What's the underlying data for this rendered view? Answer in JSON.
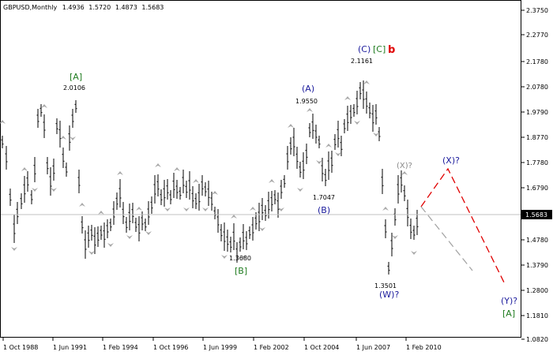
{
  "header": {
    "symbol": "GBPUSD,Monthly",
    "open": "1.4936",
    "high": "1.5720",
    "low": "1.4873",
    "close": "1.5683"
  },
  "price_axis": {
    "ticks": [
      "2.3750",
      "2.2770",
      "2.1780",
      "2.0780",
      "1.9790",
      "1.8770",
      "1.7780",
      "1.6790",
      "1.5683",
      "1.4780",
      "1.3790",
      "1.2800",
      "1.1810",
      "1.0820"
    ],
    "current_price": "1.5683"
  },
  "time_axis": {
    "ticks": [
      "1 Oct 1988",
      "1 Jun 1991",
      "1 Feb 1994",
      "1 Oct 1996",
      "1 Jun 1999",
      "1 Feb 2002",
      "1 Oct 2004",
      "1 Jun 2007",
      "1 Feb 2010"
    ]
  },
  "annotations": [
    {
      "id": "a-label",
      "text": "[A]",
      "color": "#1e7b1e"
    },
    {
      "id": "a-price",
      "text": "2.0106",
      "color": "#000000"
    },
    {
      "id": "b-label",
      "text": "[B]",
      "color": "#1e7b1e"
    },
    {
      "id": "b-price",
      "text": "1.3680",
      "color": "#000000"
    },
    {
      "id": "A-label",
      "text": "(A)",
      "color": "#1a1a9c"
    },
    {
      "id": "A-price",
      "text": "1.9550",
      "color": "#000000"
    },
    {
      "id": "B-label",
      "text": "(B)",
      "color": "#1a1a9c"
    },
    {
      "id": "B-price",
      "text": "1.7047",
      "color": "#000000"
    },
    {
      "id": "C-label",
      "text": "(C)",
      "color": "#1a1a9c"
    },
    {
      "id": "C-green",
      "text": "[C]",
      "color": "#1e7b1e"
    },
    {
      "id": "C-red",
      "text": "b",
      "color": "#e00000"
    },
    {
      "id": "C-price",
      "text": "2.1161",
      "color": "#000000"
    },
    {
      "id": "W-label",
      "text": "(W)?",
      "color": "#1a1a9c"
    },
    {
      "id": "W-price",
      "text": "1.3501",
      "color": "#000000"
    },
    {
      "id": "X1-label",
      "text": "(X)?",
      "color": "#888888"
    },
    {
      "id": "X2-label",
      "text": "(X)?",
      "color": "#1a1a9c"
    },
    {
      "id": "Y-label",
      "text": "(Y)?",
      "color": "#1a1a9c"
    },
    {
      "id": "A2-label",
      "text": "[A]",
      "color": "#1e7b1e"
    }
  ],
  "colors": {
    "bars": "#000000",
    "fractals": "#a9a9a9",
    "forecast_primary": "#e00000",
    "forecast_alt": "#a0a0a0",
    "current_price_line": "#c0c0c0"
  }
}
